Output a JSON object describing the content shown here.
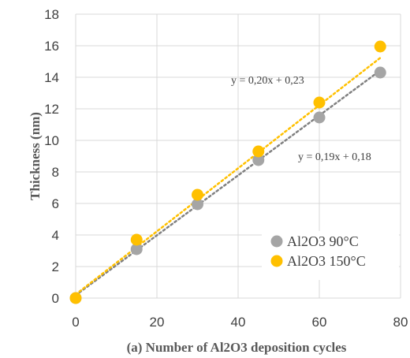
{
  "chart_data": {
    "type": "scatter",
    "xlabel": "(a) Number of Al2O3 deposition cycles",
    "ylabel": "Thickness (nm)",
    "xlim": [
      0,
      80
    ],
    "ylim": [
      0,
      18
    ],
    "x_ticks": [
      "0",
      "20",
      "40",
      "60",
      "80"
    ],
    "y_ticks": [
      "0",
      "2",
      "4",
      "6",
      "8",
      "10",
      "12",
      "14",
      "16",
      "18"
    ],
    "grid": true,
    "legend_position": "bottom-right",
    "series": [
      {
        "name": "Al2O3 90°C",
        "color": "#a5a5a5",
        "x": [
          0,
          15,
          30,
          45,
          60,
          75
        ],
        "y": [
          0,
          3.1,
          5.95,
          8.75,
          11.45,
          14.3
        ],
        "trendline": {
          "slope": 0.19,
          "intercept": 0.18,
          "label": "y = 0,19x + 0,18",
          "color": "#808080",
          "style": "dotted"
        }
      },
      {
        "name": "Al2O3 150°C",
        "color": "#ffc000",
        "x": [
          0,
          15,
          30,
          45,
          60,
          75
        ],
        "y": [
          0,
          3.7,
          6.55,
          9.3,
          12.4,
          15.95
        ],
        "trendline": {
          "slope": 0.2,
          "intercept": 0.23,
          "label": "y = 0,20x + 0,23",
          "color": "#ffc000",
          "style": "dotted"
        }
      }
    ]
  }
}
